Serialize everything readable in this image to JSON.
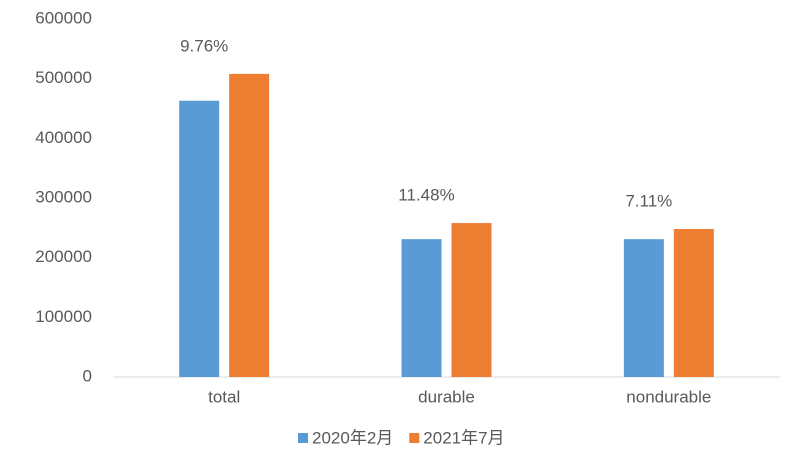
{
  "chart_data": {
    "type": "bar",
    "categories": [
      "total",
      "durable",
      "nondurable"
    ],
    "series": [
      {
        "name": "2020年2月",
        "color": "#5b9bd5",
        "values": [
          463000,
          231000,
          231000
        ]
      },
      {
        "name": "2021年7月",
        "color": "#ed7d31",
        "values": [
          508000,
          258000,
          248000
        ]
      }
    ],
    "annotations": [
      "9.76%",
      "11.48%",
      "7.11%"
    ],
    "ylim": [
      0,
      600000
    ],
    "yticks": [
      0,
      100000,
      200000,
      300000,
      400000,
      500000,
      600000
    ],
    "grid": false,
    "legend": "bottom"
  }
}
